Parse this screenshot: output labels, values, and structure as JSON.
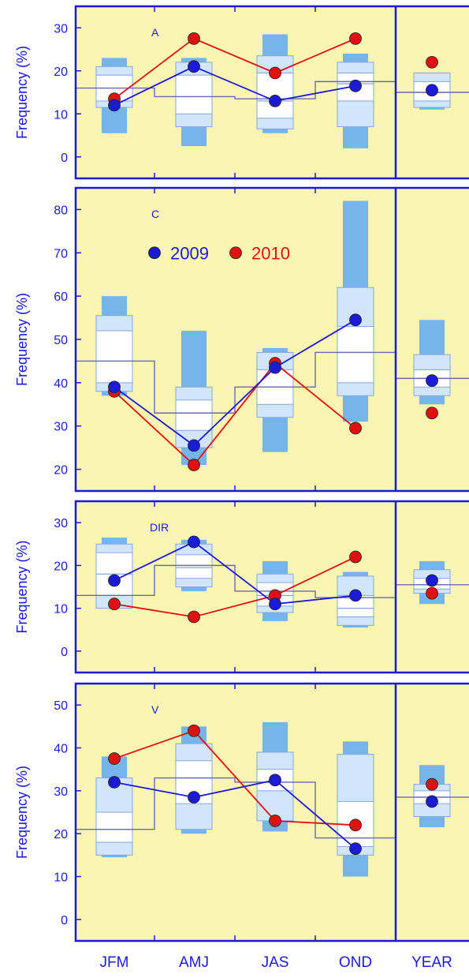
{
  "chart_data": [
    {
      "type": "box",
      "panel_label": "A",
      "ylabel": "Frequency (%)",
      "ylim": [
        -5,
        35
      ],
      "yticks": [
        0,
        10,
        20,
        30
      ],
      "categories": [
        "JFM",
        "AMJ",
        "JAS",
        "OND",
        "YEAR"
      ],
      "step_mean": [
        16,
        14,
        13.5,
        17.5,
        15
      ],
      "boxes": [
        {
          "min": 5.5,
          "p10": 11.5,
          "p25": 13,
          "median": 16,
          "p75": 19,
          "p90": 21,
          "max": 23
        },
        {
          "min": 2.5,
          "p10": 7,
          "p25": 10,
          "median": 14,
          "p75": 19,
          "p90": 22,
          "max": 23
        },
        {
          "min": 5.5,
          "p10": 6.5,
          "p25": 9,
          "median": 13,
          "p75": 19.5,
          "p90": 23.5,
          "max": 28.5
        },
        {
          "min": 2,
          "p10": 7,
          "p25": 13,
          "median": 17,
          "p75": 19.5,
          "p90": 22,
          "max": 24
        },
        {
          "min": 11,
          "p10": 11.5,
          "p25": 13,
          "median": 15,
          "p75": 17.5,
          "p90": 19.5,
          "max": 19.5
        }
      ],
      "series": [
        {
          "name": "2009",
          "values": [
            12,
            21,
            13,
            16.5
          ],
          "year_value": 15.5
        },
        {
          "name": "2010",
          "values": [
            13.5,
            27.5,
            19.5,
            27.5
          ],
          "year_value": 22
        }
      ]
    },
    {
      "type": "box",
      "panel_label": "C",
      "ylabel": "Frequency (%)",
      "ylim": [
        15,
        85
      ],
      "yticks": [
        20,
        30,
        40,
        50,
        60,
        70,
        80
      ],
      "categories": [
        "JFM",
        "AMJ",
        "JAS",
        "OND",
        "YEAR"
      ],
      "step_mean": [
        45,
        33,
        39,
        47,
        41
      ],
      "boxes": [
        {
          "min": 37,
          "p10": 38,
          "p25": 40,
          "median": 45,
          "p75": 52,
          "p90": 55.5,
          "max": 60
        },
        {
          "min": 21,
          "p10": 25,
          "p25": 29,
          "median": 33,
          "p75": 36,
          "p90": 39,
          "max": 52
        },
        {
          "min": 24,
          "p10": 32,
          "p25": 35,
          "median": 39,
          "p75": 43,
          "p90": 47,
          "max": 48
        },
        {
          "min": 31,
          "p10": 37,
          "p25": 40,
          "median": 47,
          "p75": 53,
          "p90": 62,
          "max": 82
        },
        {
          "min": 35,
          "p10": 37,
          "p25": 39,
          "median": 41,
          "p75": 43,
          "p90": 46.5,
          "max": 54.5
        }
      ],
      "legend": [
        {
          "label": "2009",
          "color": "#1b1bd6"
        },
        {
          "label": "2010",
          "color": "#e01010"
        }
      ],
      "series": [
        {
          "name": "2009",
          "values": [
            39,
            25.5,
            43.5,
            54.5
          ],
          "year_value": 40.5
        },
        {
          "name": "2010",
          "values": [
            38,
            21,
            44.5,
            29.5
          ],
          "year_value": 33
        }
      ]
    },
    {
      "type": "box",
      "panel_label": "DIR",
      "ylabel": "Frequency (%)",
      "ylim": [
        -5,
        35
      ],
      "yticks": [
        0,
        10,
        20,
        30
      ],
      "categories": [
        "JFM",
        "AMJ",
        "JAS",
        "OND",
        "YEAR"
      ],
      "step_mean": [
        13,
        20,
        14,
        12.5,
        15.5
      ],
      "boxes": [
        {
          "min": 10,
          "p10": 10,
          "p25": 13,
          "median": 18,
          "p75": 23,
          "p90": 25,
          "max": 26.5
        },
        {
          "min": 14,
          "p10": 15,
          "p25": 17,
          "median": 19.5,
          "p75": 22.5,
          "p90": 25,
          "max": 26
        },
        {
          "min": 7,
          "p10": 9,
          "p25": 10.5,
          "median": 13,
          "p75": 16,
          "p90": 18,
          "max": 21
        },
        {
          "min": 5.5,
          "p10": 6,
          "p25": 8,
          "median": 10,
          "p75": 13,
          "p90": 17.5,
          "max": 18.5
        },
        {
          "min": 11,
          "p10": 13.5,
          "p25": 14.5,
          "median": 15.5,
          "p75": 17,
          "p90": 19,
          "max": 21
        }
      ],
      "series": [
        {
          "name": "2009",
          "values": [
            16.5,
            25.5,
            11,
            13
          ],
          "year_value": 16.5
        },
        {
          "name": "2010",
          "values": [
            11,
            8,
            13,
            22
          ],
          "year_value": 13.5
        }
      ]
    },
    {
      "type": "box",
      "panel_label": "V",
      "ylabel": "Frequency (%)",
      "ylim": [
        -5,
        55
      ],
      "yticks": [
        0,
        10,
        20,
        30,
        40,
        50
      ],
      "categories": [
        "JFM",
        "AMJ",
        "JAS",
        "OND",
        "YEAR"
      ],
      "step_mean": [
        21,
        33,
        32,
        19,
        28.5
      ],
      "boxes": [
        {
          "min": 14.5,
          "p10": 15,
          "p25": 18,
          "median": 21,
          "p75": 25,
          "p90": 33,
          "max": 38
        },
        {
          "min": 20,
          "p10": 21,
          "p25": 27,
          "median": 33,
          "p75": 37,
          "p90": 41,
          "max": 45
        },
        {
          "min": 20.5,
          "p10": 23,
          "p25": 30,
          "median": 32,
          "p75": 35,
          "p90": 39,
          "max": 46
        },
        {
          "min": 10,
          "p10": 15,
          "p25": 17,
          "median": 19,
          "p75": 27.5,
          "p90": 38.5,
          "max": 41.5
        },
        {
          "min": 21.5,
          "p10": 24,
          "p25": 27,
          "median": 28.5,
          "p75": 30,
          "p90": 31.5,
          "max": 36
        }
      ],
      "series": [
        {
          "name": "2009",
          "values": [
            32,
            28.5,
            32.5,
            16.5
          ],
          "year_value": 27.5
        },
        {
          "name": "2010",
          "values": [
            37.5,
            44,
            23,
            22
          ],
          "year_value": 31.5
        }
      ]
    }
  ],
  "colors": {
    "panel_background": "#fbf5b4",
    "frame": "#1b1bd6",
    "whisker_range": "#78b4ec",
    "outer_box": "#d2e6fb",
    "inner_box": "#ffffff",
    "box_edge": "#86a6de",
    "mean_step": "#6a6ab4",
    "series_2009": "#1b1bd6",
    "series_2010": "#e01010"
  }
}
